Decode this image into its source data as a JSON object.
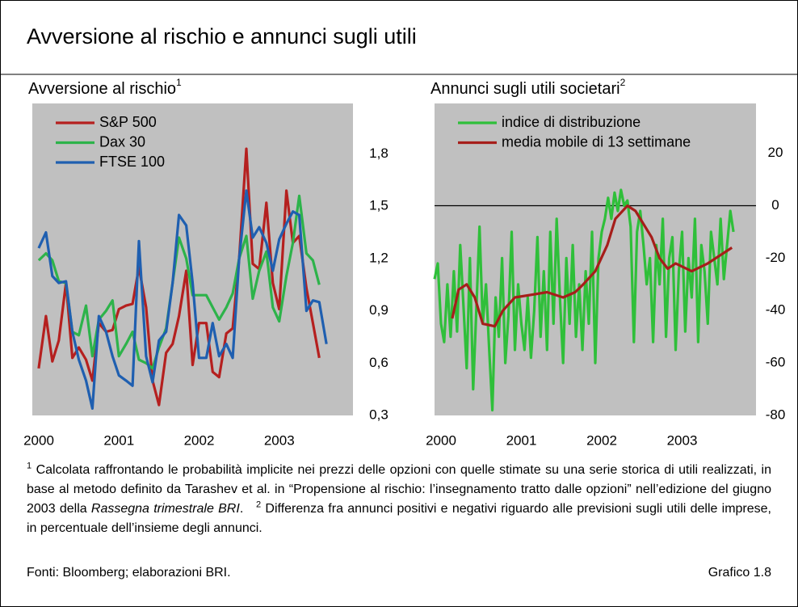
{
  "title": "Avversione al rischio e annunci sugli utili",
  "chart_data": [
    {
      "type": "line",
      "title": "Avversione al rischio",
      "title_note": "1",
      "xlim": [
        2000,
        2004
      ],
      "xticks": [
        2000,
        2001,
        2002,
        2003
      ],
      "ylim": [
        0.3,
        2.09
      ],
      "yticks": [
        {
          "value": 0.3,
          "label": "0,3"
        },
        {
          "value": 0.6,
          "label": "0,6"
        },
        {
          "value": 0.9,
          "label": "0,9"
        },
        {
          "value": 1.2,
          "label": "1,2"
        },
        {
          "value": 1.5,
          "label": "1,5"
        },
        {
          "value": 1.8,
          "label": "1,8"
        }
      ],
      "grid": false,
      "legend": "upper left",
      "background": "#c0c0c0",
      "x": [
        2000.08,
        2000.17,
        2000.25,
        2000.33,
        2000.42,
        2000.5,
        2000.58,
        2000.67,
        2000.75,
        2000.83,
        2000.92,
        2001.0,
        2001.08,
        2001.17,
        2001.25,
        2001.33,
        2001.42,
        2001.5,
        2001.58,
        2001.67,
        2001.75,
        2001.83,
        2001.92,
        2002.0,
        2002.08,
        2002.17,
        2002.25,
        2002.33,
        2002.42,
        2002.5,
        2002.58,
        2002.67,
        2002.75,
        2002.83,
        2002.92,
        2003.0,
        2003.08,
        2003.17,
        2003.25,
        2003.33,
        2003.42,
        2003.5,
        2003.58,
        2003.67
      ],
      "series": [
        {
          "name": "S&P 500",
          "color": "#b5201f",
          "values": [
            0.57,
            0.87,
            0.61,
            0.73,
            1.06,
            0.63,
            0.69,
            0.62,
            0.5,
            0.83,
            0.78,
            0.79,
            0.91,
            0.93,
            0.94,
            1.15,
            0.92,
            0.5,
            0.36,
            0.66,
            0.71,
            0.87,
            1.13,
            0.59,
            0.83,
            0.83,
            0.55,
            0.52,
            0.77,
            0.8,
            1.2,
            1.83,
            1.17,
            1.14,
            1.52,
            1.06,
            0.91,
            1.59,
            1.29,
            1.33,
            1.03,
            0.83,
            0.63,
            null
          ]
        },
        {
          "name": "Dax 30",
          "color": "#2db34a",
          "values": [
            1.19,
            1.23,
            1.19,
            1.07,
            1.06,
            0.78,
            0.76,
            0.93,
            0.64,
            0.85,
            0.9,
            0.96,
            0.64,
            0.71,
            0.78,
            0.62,
            0.6,
            0.57,
            0.69,
            0.8,
            1.06,
            1.32,
            1.2,
            0.99,
            0.99,
            0.99,
            0.92,
            0.85,
            0.92,
            1.0,
            1.2,
            1.33,
            0.97,
            1.13,
            1.24,
            0.92,
            0.84,
            1.1,
            1.29,
            1.56,
            1.23,
            1.19,
            1.05,
            null
          ]
        },
        {
          "name": "FTSE 100",
          "color": "#1f5fb0",
          "values": [
            1.26,
            1.35,
            1.1,
            1.06,
            1.07,
            0.78,
            0.62,
            0.5,
            0.34,
            0.87,
            0.78,
            0.64,
            0.53,
            0.5,
            0.47,
            1.3,
            0.64,
            0.49,
            0.73,
            0.78,
            1.06,
            1.45,
            1.39,
            1.06,
            0.63,
            0.63,
            0.83,
            0.64,
            0.71,
            0.63,
            1.2,
            1.59,
            1.32,
            1.38,
            1.29,
            1.13,
            1.31,
            1.4,
            1.47,
            1.45,
            0.9,
            0.96,
            0.95,
            0.71
          ]
        }
      ]
    },
    {
      "type": "line",
      "title": "Annunci sugli utili societari",
      "title_note": "2",
      "xlim": [
        2000,
        2004
      ],
      "xticks": [
        2000,
        2001,
        2002,
        2003
      ],
      "ylim": [
        -80,
        39
      ],
      "yticks": [
        -80,
        -60,
        -40,
        -20,
        0,
        20
      ],
      "hline": 0,
      "grid": false,
      "legend": "upper left",
      "background": "#c0c0c0",
      "series": [
        {
          "name": "indice di distribuzione",
          "color": "#2fbf3a",
          "x": [
            2000.0,
            2000.04,
            2000.08,
            2000.12,
            2000.16,
            2000.2,
            2000.24,
            2000.28,
            2000.32,
            2000.36,
            2000.4,
            2000.44,
            2000.48,
            2000.52,
            2000.56,
            2000.6,
            2000.64,
            2000.68,
            2000.72,
            2000.76,
            2000.8,
            2000.84,
            2000.88,
            2000.92,
            2000.96,
            2001.0,
            2001.04,
            2001.08,
            2001.12,
            2001.16,
            2001.2,
            2001.24,
            2001.28,
            2001.32,
            2001.36,
            2001.4,
            2001.44,
            2001.48,
            2001.52,
            2001.56,
            2001.6,
            2001.64,
            2001.68,
            2001.72,
            2001.76,
            2001.8,
            2001.84,
            2001.88,
            2001.92,
            2001.96,
            2002.0,
            2002.04,
            2002.08,
            2002.12,
            2002.16,
            2002.2,
            2002.24,
            2002.28,
            2002.32,
            2002.36,
            2002.4,
            2002.44,
            2002.48,
            2002.52,
            2002.56,
            2002.6,
            2002.64,
            2002.68,
            2002.72,
            2002.76,
            2002.8,
            2002.84,
            2002.88,
            2002.92,
            2002.96,
            2003.0,
            2003.04,
            2003.08,
            2003.12,
            2003.16,
            2003.2,
            2003.24,
            2003.28,
            2003.32,
            2003.36,
            2003.4,
            2003.44,
            2003.48,
            2003.52,
            2003.56,
            2003.6,
            2003.64,
            2003.68,
            2003.72
          ],
          "values": [
            -28,
            -22,
            -45,
            -52,
            -30,
            -50,
            -25,
            -48,
            -15,
            -38,
            -62,
            -20,
            -70,
            -40,
            -8,
            -45,
            -30,
            -55,
            -78,
            -35,
            -50,
            -20,
            -60,
            -42,
            -10,
            -55,
            -30,
            -45,
            -55,
            -35,
            -58,
            -40,
            -12,
            -50,
            -25,
            -55,
            -10,
            -45,
            -5,
            -35,
            -60,
            -20,
            -45,
            -15,
            -50,
            -30,
            -55,
            -25,
            -45,
            -10,
            -60,
            -20,
            -10,
            -5,
            3,
            -5,
            5,
            -2,
            6,
            0,
            2,
            -8,
            -52,
            -10,
            -2,
            -15,
            -30,
            -20,
            -52,
            -15,
            -30,
            -5,
            -50,
            -20,
            -12,
            -55,
            -25,
            -10,
            -48,
            -20,
            -35,
            -5,
            -52,
            -15,
            -25,
            -45,
            -10,
            -20,
            -30,
            -5,
            -28,
            -15,
            -2,
            -10
          ]
        },
        {
          "name": "media mobile di 13 settimane",
          "color": "#a61e1a",
          "x": [
            2000.22,
            2000.3,
            2000.4,
            2000.5,
            2000.6,
            2000.75,
            2000.85,
            2001.0,
            2001.2,
            2001.4,
            2001.6,
            2001.75,
            2001.85,
            2002.0,
            2002.15,
            2002.25,
            2002.4,
            2002.5,
            2002.7,
            2002.8,
            2002.9,
            2003.0,
            2003.2,
            2003.4,
            2003.6,
            2003.7
          ],
          "values": [
            -43,
            -32,
            -30,
            -35,
            -45,
            -46,
            -40,
            -35,
            -34,
            -33,
            -35,
            -33,
            -30,
            -25,
            -15,
            -5,
            0,
            -2,
            -12,
            -20,
            -24,
            -22,
            -25,
            -22,
            -18,
            -16
          ]
        }
      ]
    }
  ],
  "footnote": {
    "m1": "1",
    "t1a": "Calcolata raffrontando le probabilità implicite nei prezzi delle opzioni con quelle stimate su una serie storica di utili realizzati, in base al metodo definito da Tarashev et al. in “Propensione al rischio: l’insegnamento tratto dalle opzioni” nell’edizione del giugno 2003 della ",
    "t1i": "Rassegna trimestrale BRI",
    "t1b": ".",
    "m2": "2",
    "t2": "Differenza fra annunci positivi e negativi riguardo alle previsioni sugli utili delle imprese, in percentuale dell’insieme degli annunci."
  },
  "source": "Fonti: Bloomberg; elaborazioni BRI.",
  "chart_number": "Grafico 1.8"
}
